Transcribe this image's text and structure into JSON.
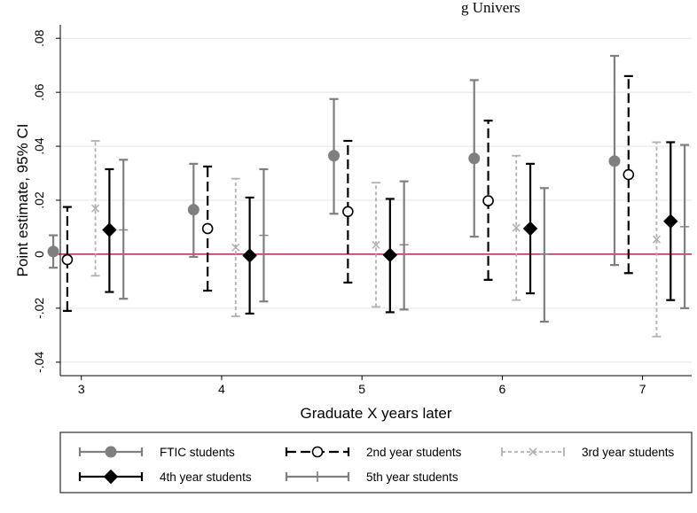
{
  "chart_data": {
    "type": "scatter",
    "title": "g Univers",
    "xlabel": "Graduate X years later",
    "ylabel": "Point estimate, 95% CI",
    "categories": [
      "3",
      "4",
      "5",
      "6",
      "7"
    ],
    "y_ticks": [
      ".08",
      ".06",
      ".04",
      ".02",
      "0",
      "-.02",
      "-.04"
    ],
    "ylim": [
      -0.045,
      0.085
    ],
    "xlim": [
      2.85,
      7.35
    ],
    "reference_line": 0,
    "reference_line_color": "#b0264a",
    "grid": true,
    "legend_position": "bottom",
    "series": [
      {
        "name": "FTIC students",
        "offset": -0.2,
        "marker": "filled-circle",
        "line_style": "solid",
        "color": "#7f7f7f",
        "points": [
          {
            "x": "3",
            "estimate": 0.001,
            "ci_low": -0.005,
            "ci_high": 0.007
          },
          {
            "x": "4",
            "estimate": 0.0165,
            "ci_low": -0.001,
            "ci_high": 0.0335
          },
          {
            "x": "5",
            "estimate": 0.0365,
            "ci_low": 0.015,
            "ci_high": 0.0575
          },
          {
            "x": "6",
            "estimate": 0.0355,
            "ci_low": 0.0065,
            "ci_high": 0.0645
          },
          {
            "x": "7",
            "estimate": 0.0345,
            "ci_low": -0.004,
            "ci_high": 0.0735
          }
        ]
      },
      {
        "name": "2nd year students",
        "offset": -0.1,
        "marker": "hollow-circle",
        "line_style": "long-dash",
        "color": "#000000",
        "points": [
          {
            "x": "3",
            "estimate": -0.002,
            "ci_low": -0.021,
            "ci_high": 0.0175
          },
          {
            "x": "4",
            "estimate": 0.0095,
            "ci_low": -0.0135,
            "ci_high": 0.0325
          },
          {
            "x": "5",
            "estimate": 0.0158,
            "ci_low": -0.0105,
            "ci_high": 0.042
          },
          {
            "x": "6",
            "estimate": 0.0198,
            "ci_low": -0.0095,
            "ci_high": 0.0495
          },
          {
            "x": "7",
            "estimate": 0.0295,
            "ci_low": -0.007,
            "ci_high": 0.066
          }
        ]
      },
      {
        "name": "3rd year students",
        "offset": 0.1,
        "marker": "x",
        "line_style": "short-dash",
        "color": "#b0b0b0",
        "points": [
          {
            "x": "3",
            "estimate": 0.017,
            "ci_low": -0.008,
            "ci_high": 0.042
          },
          {
            "x": "4",
            "estimate": 0.0025,
            "ci_low": -0.023,
            "ci_high": 0.028
          },
          {
            "x": "5",
            "estimate": 0.0035,
            "ci_low": -0.0195,
            "ci_high": 0.0265
          },
          {
            "x": "6",
            "estimate": 0.0098,
            "ci_low": -0.017,
            "ci_high": 0.0365
          },
          {
            "x": "7",
            "estimate": 0.0055,
            "ci_low": -0.0305,
            "ci_high": 0.0415
          }
        ]
      },
      {
        "name": "4th year students",
        "offset": 0.2,
        "marker": "filled-diamond",
        "line_style": "solid",
        "color": "#000000",
        "points": [
          {
            "x": "3",
            "estimate": 0.009,
            "ci_low": -0.014,
            "ci_high": 0.0315
          },
          {
            "x": "4",
            "estimate": -0.0005,
            "ci_low": -0.022,
            "ci_high": 0.021
          },
          {
            "x": "5",
            "estimate": -0.0003,
            "ci_low": -0.0215,
            "ci_high": 0.0205
          },
          {
            "x": "6",
            "estimate": 0.0095,
            "ci_low": -0.0145,
            "ci_high": 0.0335
          },
          {
            "x": "7",
            "estimate": 0.0122,
            "ci_low": -0.017,
            "ci_high": 0.0415
          }
        ]
      },
      {
        "name": "5th year students",
        "offset": 0.3,
        "marker": "vertical-bar",
        "line_style": "solid",
        "color": "#7f7f7f",
        "points": [
          {
            "x": "3",
            "estimate": 0.009,
            "ci_low": -0.0165,
            "ci_high": 0.035
          },
          {
            "x": "4",
            "estimate": 0.007,
            "ci_low": -0.0175,
            "ci_high": 0.0315
          },
          {
            "x": "5",
            "estimate": 0.0035,
            "ci_low": -0.0205,
            "ci_high": 0.027
          },
          {
            "x": "6",
            "estimate": 0.0,
            "ci_low": -0.025,
            "ci_high": 0.0245
          },
          {
            "x": "7",
            "estimate": 0.0102,
            "ci_low": -0.02,
            "ci_high": 0.0405
          }
        ]
      }
    ]
  }
}
